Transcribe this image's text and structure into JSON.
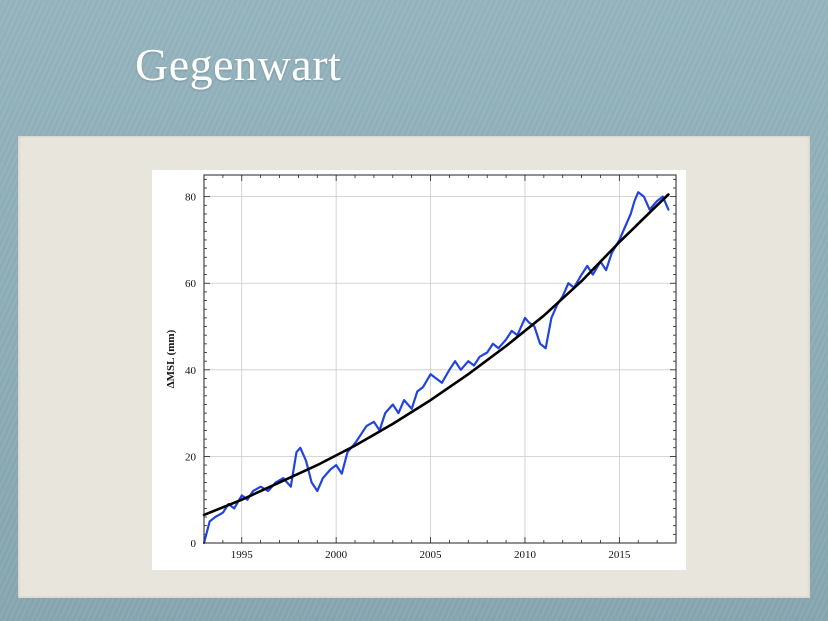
{
  "slide": {
    "title": "Gegenwart"
  },
  "chart_data": {
    "type": "line",
    "title": "",
    "xlabel": "",
    "ylabel": "ΔMSL (mm)",
    "xlim": [
      1993,
      2018
    ],
    "ylim": [
      0,
      85
    ],
    "xticks": [
      1995,
      2000,
      2005,
      2010,
      2015
    ],
    "yticks": [
      0,
      20,
      40,
      60,
      80
    ],
    "grid": true,
    "colors": {
      "observed": "#2244dd",
      "fit": "#000000"
    },
    "series": [
      {
        "kind": "observed",
        "x": [
          1993.0,
          1993.3,
          1993.6,
          1994.0,
          1994.3,
          1994.6,
          1995.0,
          1995.3,
          1995.6,
          1996.0,
          1996.4,
          1996.8,
          1997.2,
          1997.6,
          1997.9,
          1998.1,
          1998.4,
          1998.7,
          1999.0,
          1999.3,
          1999.7,
          2000.0,
          2000.3,
          2000.6,
          2001.0,
          2001.3,
          2001.6,
          2002.0,
          2002.3,
          2002.6,
          2003.0,
          2003.3,
          2003.6,
          2004.0,
          2004.3,
          2004.6,
          2005.0,
          2005.3,
          2005.6,
          2006.0,
          2006.3,
          2006.6,
          2007.0,
          2007.3,
          2007.6,
          2008.0,
          2008.3,
          2008.6,
          2009.0,
          2009.3,
          2009.6,
          2010.0,
          2010.2,
          2010.5,
          2010.8,
          2011.1,
          2011.4,
          2011.7,
          2012.0,
          2012.3,
          2012.6,
          2013.0,
          2013.3,
          2013.6,
          2014.0,
          2014.3,
          2014.6,
          2015.0,
          2015.3,
          2015.6,
          2015.8,
          2016.0,
          2016.3,
          2016.6,
          2017.0,
          2017.3,
          2017.6
        ],
        "y": [
          0,
          5,
          6,
          7,
          9,
          8,
          11,
          10,
          12,
          13,
          12,
          14,
          15,
          13,
          21,
          22,
          19,
          14,
          12,
          15,
          17,
          18,
          16,
          21,
          23,
          25,
          27,
          28,
          26,
          30,
          32,
          30,
          33,
          31,
          35,
          36,
          39,
          38,
          37,
          40,
          42,
          40,
          42,
          41,
          43,
          44,
          46,
          45,
          47,
          49,
          48,
          52,
          51,
          50,
          46,
          45,
          52,
          55,
          57,
          60,
          59,
          62,
          64,
          62,
          65,
          63,
          67,
          70,
          73,
          76,
          79,
          81,
          80,
          77,
          79,
          80,
          77
        ]
      },
      {
        "kind": "fit",
        "x": [
          1993,
          1995,
          1997,
          1999,
          2001,
          2003,
          2005,
          2007,
          2009,
          2011,
          2013,
          2015,
          2017,
          2017.6
        ],
        "y": [
          6.5,
          10,
          14,
          18,
          22.5,
          27.5,
          33,
          39,
          45.5,
          52.5,
          60.5,
          69.5,
          78,
          80.5
        ]
      }
    ]
  }
}
